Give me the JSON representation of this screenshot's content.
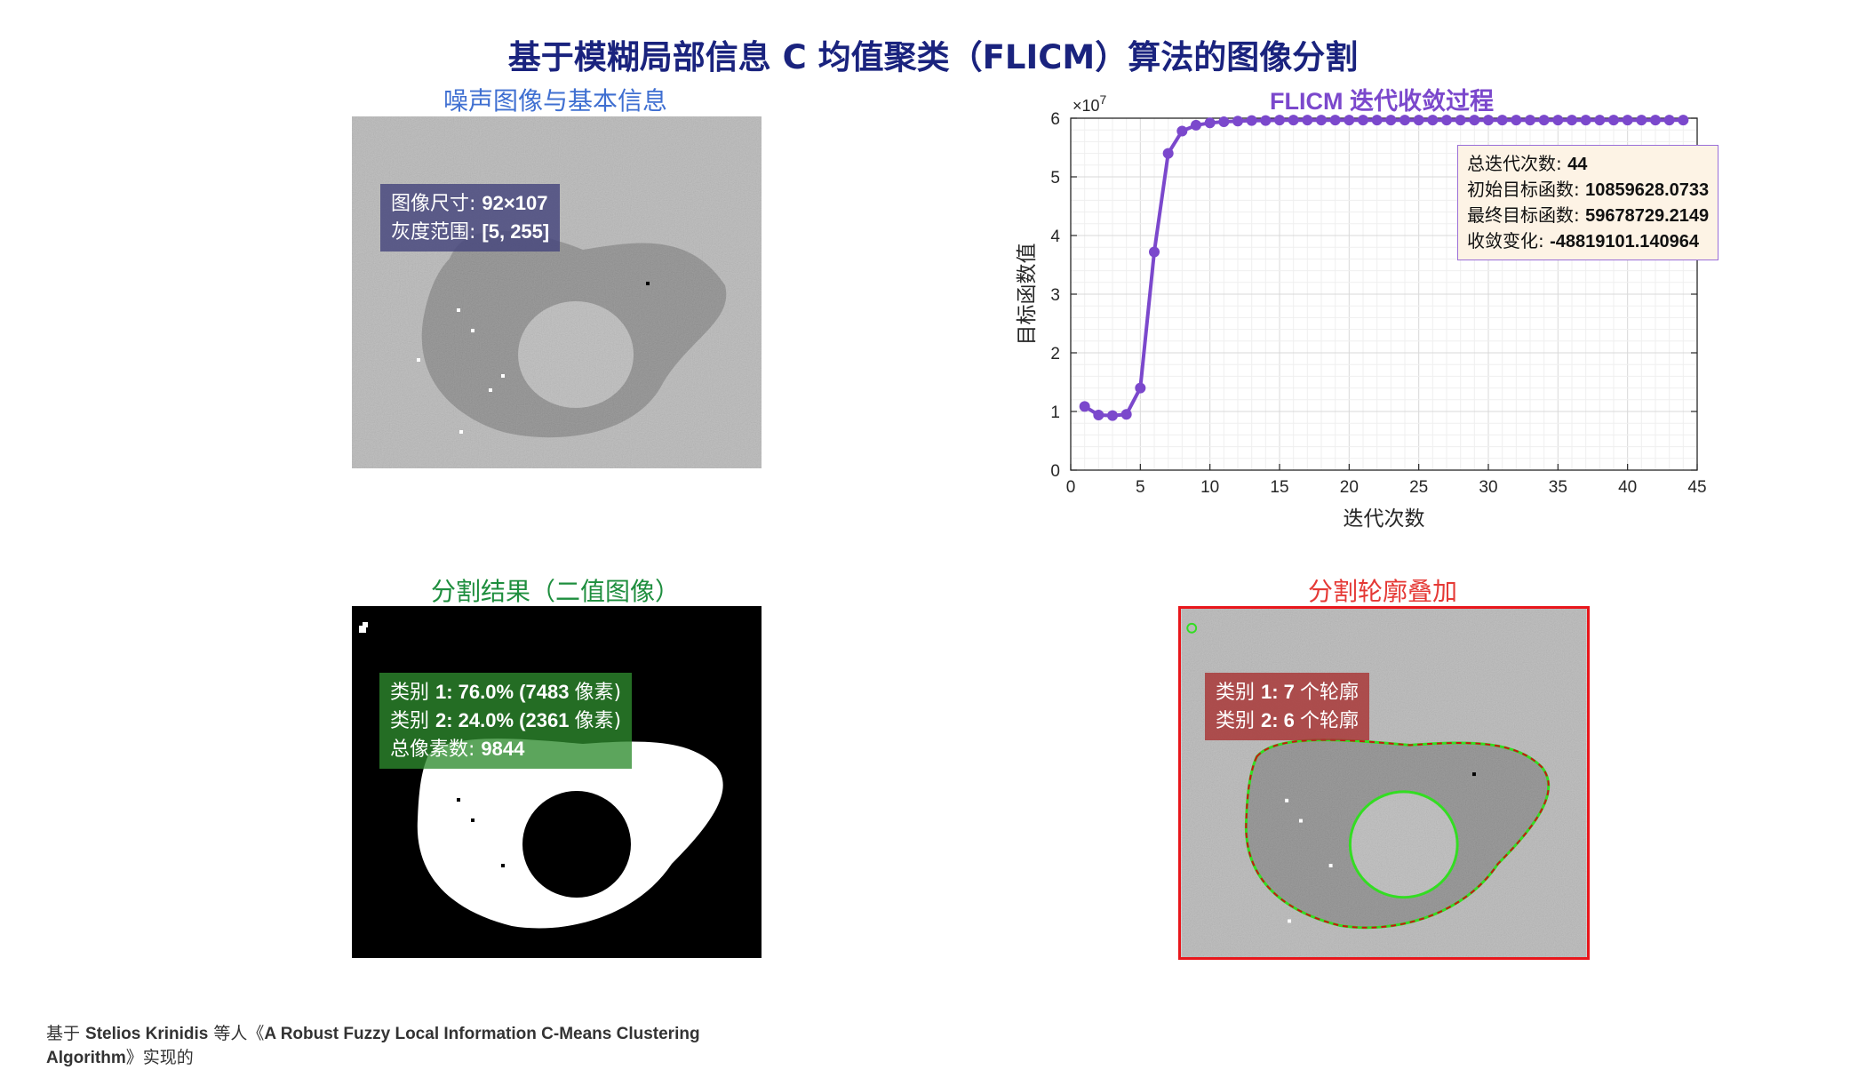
{
  "main_title": "基于模糊局部信息 C 均值聚类（FLICM）算法的图像分割",
  "panels": {
    "noisy": {
      "title": "噪声图像与基本信息",
      "info": [
        {
          "label": "图像尺寸: ",
          "value": "92×107"
        },
        {
          "label": "灰度范围: ",
          "value": "[5, 255]"
        }
      ]
    },
    "binary": {
      "title": "分割结果（二值图像）",
      "info": [
        {
          "label": "类别 ",
          "value": "1: 76.0% (7483 ",
          "suffix": "像素)"
        },
        {
          "label": "类别 ",
          "value": "2: 24.0% (2361 ",
          "suffix": "像素)"
        },
        {
          "label": "总像素数: ",
          "value": "9844",
          "suffix": ""
        }
      ]
    },
    "overlay": {
      "title": "分割轮廓叠加",
      "info": [
        {
          "label": "类别 ",
          "value": "1: 7 ",
          "suffix": "个轮廓"
        },
        {
          "label": "类别 ",
          "value": "2: 6 ",
          "suffix": "个轮廓"
        }
      ]
    }
  },
  "colors": {
    "main_title": "#1a237e",
    "noisy_title": "#3f6fd1",
    "curve_title": "#7b48cc",
    "binary_title": "#1e8e3e",
    "overlay_title": "#e53935",
    "curve_line": "#7b48cc",
    "contour_class1": "#33dd22",
    "contour_class2": "#cc1111"
  },
  "chart_data": {
    "type": "line",
    "title": "FLICM 迭代收敛过程",
    "xlabel": "迭代次数",
    "ylabel": "目标函数值",
    "y_exponent": "×10^7",
    "xlim": [
      0,
      45
    ],
    "ylim": [
      0,
      6
    ],
    "xticks": [
      0,
      5,
      10,
      15,
      20,
      25,
      30,
      35,
      40,
      45
    ],
    "yticks": [
      0,
      1,
      2,
      3,
      4,
      5,
      6
    ],
    "grid": true,
    "minor_grid": true,
    "x": [
      1,
      2,
      3,
      4,
      5,
      6,
      7,
      8,
      9,
      10,
      11,
      12,
      13,
      14,
      15,
      16,
      17,
      18,
      19,
      20,
      21,
      22,
      23,
      24,
      25,
      26,
      27,
      28,
      29,
      30,
      31,
      32,
      33,
      34,
      35,
      36,
      37,
      38,
      39,
      40,
      41,
      42,
      43,
      44
    ],
    "y": [
      1.086,
      0.94,
      0.93,
      0.95,
      1.4,
      3.72,
      5.4,
      5.78,
      5.88,
      5.92,
      5.94,
      5.95,
      5.96,
      5.96,
      5.967,
      5.967,
      5.967,
      5.967,
      5.967,
      5.967,
      5.967,
      5.967,
      5.967,
      5.967,
      5.967,
      5.967,
      5.967,
      5.967,
      5.967,
      5.967,
      5.967,
      5.967,
      5.967,
      5.967,
      5.967,
      5.967,
      5.967,
      5.967,
      5.967,
      5.967,
      5.967,
      5.967,
      5.967,
      5.968
    ],
    "annotation": [
      {
        "label": "总迭代次数: ",
        "value": "44"
      },
      {
        "label": "初始目标函数: ",
        "value": "10859628.0733"
      },
      {
        "label": "最终目标函数: ",
        "value": "59678729.2149"
      },
      {
        "label": "收敛变化: ",
        "value": "-48819101.140964"
      }
    ]
  },
  "footer": {
    "prefix": "基于 ",
    "authors": "Stelios Krinidis",
    "mid": " 等人《",
    "paper": "A Robust Fuzzy Local Information C-Means Clustering Algorithm",
    "suffix": "》实现的"
  }
}
